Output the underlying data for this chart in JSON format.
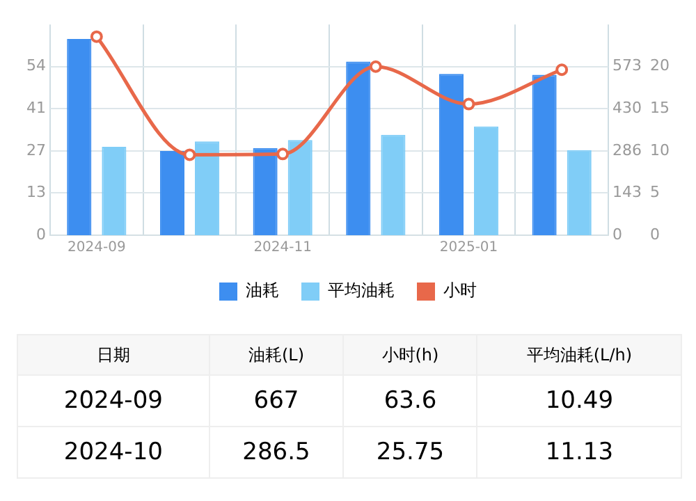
{
  "chart_data": {
    "type": "bar",
    "categories": [
      "2024-09",
      null,
      "2024-11",
      null,
      "2025-01",
      null
    ],
    "series": [
      {
        "name": "油耗",
        "axis": "y2",
        "color": "#3d8ef0",
        "values": [
          667,
          286.5,
          296,
          590,
          548,
          545
        ]
      },
      {
        "name": "平均油耗",
        "axis": "y3",
        "color": "#80cdf7",
        "values": [
          10.49,
          11.13,
          11.3,
          11.9,
          12.9,
          10.1
        ]
      },
      {
        "name": "小时",
        "type": "line",
        "axis": "y",
        "color": "#e8684a",
        "marker": "circle",
        "values": [
          63.6,
          25.75,
          26,
          54,
          42,
          53
        ]
      }
    ],
    "ylim": [
      0,
      67.5
    ],
    "yticks": [
      0,
      {
        "value": 13.5,
        "label": "13"
      },
      27,
      {
        "value": 40.5,
        "label": "41"
      },
      54
    ],
    "y2lim": [
      0,
      716.25
    ],
    "y2ticks": [
      0,
      {
        "value": 143.25,
        "label": "143"
      },
      {
        "value": 286.5,
        "label": "286"
      },
      {
        "value": 429.75,
        "label": "430"
      },
      573
    ],
    "y3lim": [
      0,
      25
    ],
    "y3ticks": [
      0,
      5,
      10,
      15,
      20
    ],
    "grid": true,
    "legend": "bottom",
    "annotations": [
      "日期",
      "油耗(L)",
      "小时(h)",
      "平均油耗(L/h)",
      "2024-09",
      "667",
      "63.6",
      "10.49",
      "2024-10",
      "286.5",
      "25.75",
      "11.13"
    ]
  }
}
